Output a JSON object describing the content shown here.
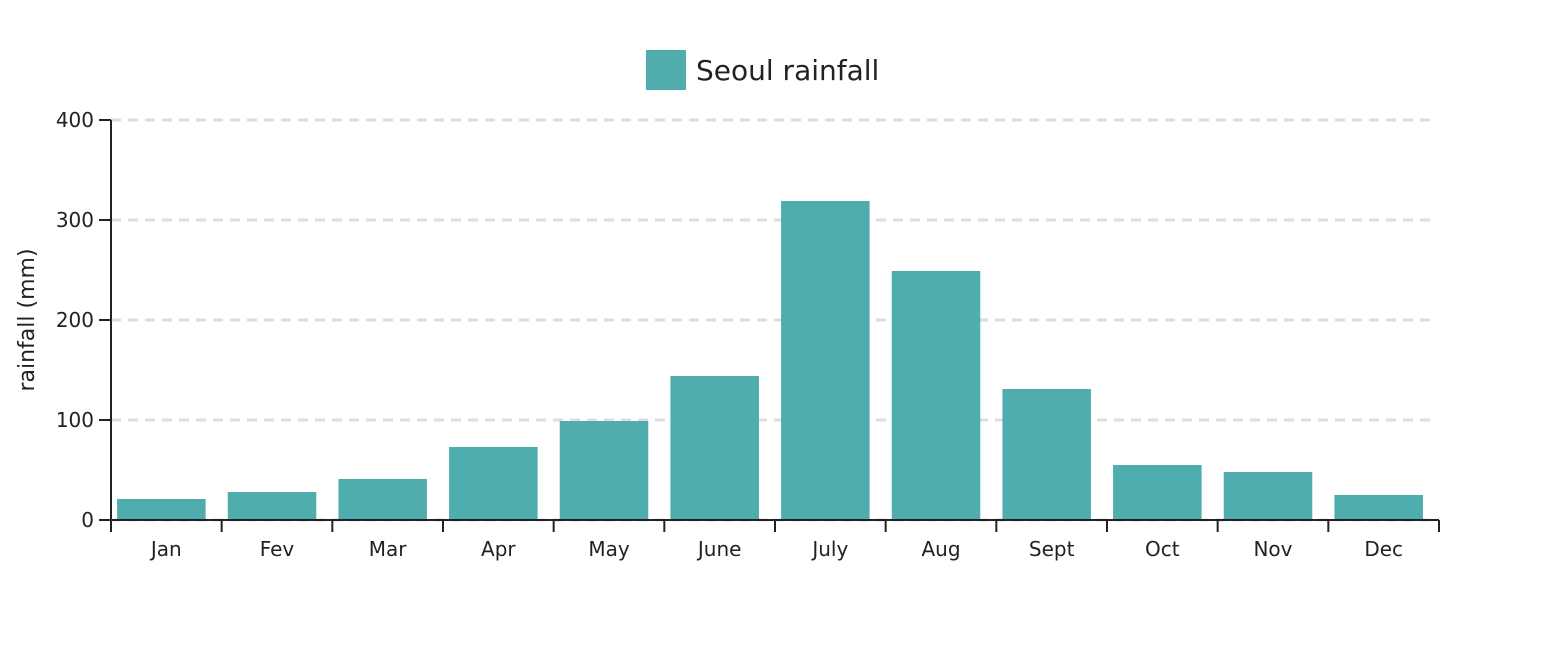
{
  "chart_data": {
    "type": "bar",
    "title": "",
    "xlabel": "",
    "ylabel": "rainfall (mm)",
    "ylim": [
      0,
      400
    ],
    "yticks": [
      0,
      100,
      200,
      300,
      400
    ],
    "grid": "horizontal dashed",
    "legend_position": "top-center",
    "categories": [
      "Jan",
      "Fev",
      "Mar",
      "Apr",
      "May",
      "June",
      "July",
      "Aug",
      "Sept",
      "Oct",
      "Nov",
      "Dec"
    ],
    "series": [
      {
        "name": "Seoul rainfall",
        "color": "#50adad",
        "values": [
          21,
          28,
          41,
          73,
          99,
          144,
          319,
          249,
          131,
          55,
          48,
          25
        ]
      }
    ]
  }
}
